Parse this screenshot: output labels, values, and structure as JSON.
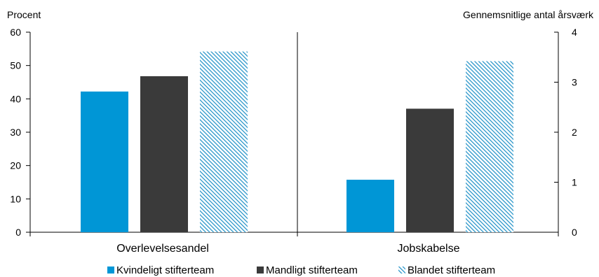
{
  "chart_data": {
    "type": "bar",
    "left_axis_label": "Procent",
    "right_axis_label": "Gennemsnitlige antal årsværk",
    "left_ylim": [
      0,
      60
    ],
    "left_ticks": [
      "0",
      "10",
      "20",
      "30",
      "40",
      "50",
      "60"
    ],
    "right_ylim": [
      0,
      4
    ],
    "right_ticks": [
      "0",
      "1",
      "2",
      "3",
      "4"
    ],
    "categories": [
      "Overlevelsesandel",
      "Jobskabelse"
    ],
    "category_axis": [
      "left",
      "right"
    ],
    "series": [
      {
        "name": "Kvindeligt stifterteam",
        "color": "#0096d6",
        "pattern": "solid",
        "values": [
          42.2,
          1.05
        ]
      },
      {
        "name": "Mandligt stifterteam",
        "color": "#3a3a3a",
        "pattern": "solid",
        "values": [
          46.8,
          2.47
        ]
      },
      {
        "name": "Blandet stifterteam",
        "color": "#1c8fc6",
        "pattern": "hatch",
        "values": [
          54.2,
          3.42
        ]
      }
    ],
    "legend_position": "bottom",
    "grid": false
  }
}
